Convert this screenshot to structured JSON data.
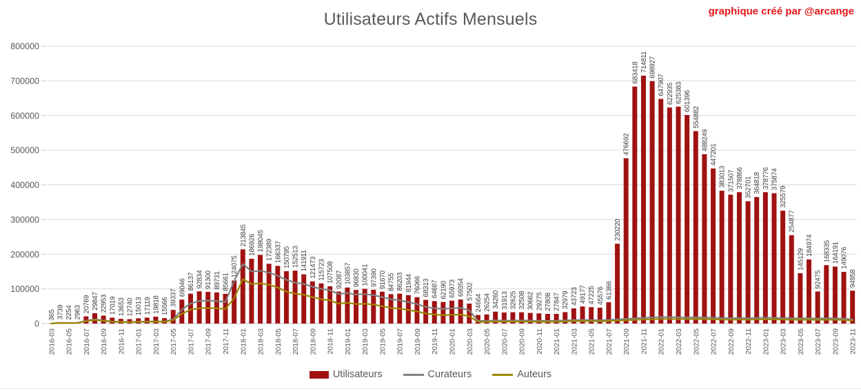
{
  "header": {
    "title": "Utilisateurs Actifs Mensuels",
    "credit": "graphique créé par  @arcange"
  },
  "legend": {
    "utilisateurs": "Utilisateurs",
    "curateurs": "Curateurs",
    "auteurs": "Auteurs"
  },
  "colors": {
    "bar": "#A01212",
    "curateurs_line": "#808080",
    "auteurs_line": "#9B8700",
    "gridline": "#D9D9D9",
    "axis_line": "#BFBFBF",
    "value_label": "#3f3f3f",
    "axis_text": "#595959",
    "title_text": "#595959",
    "credit_text": "#E31515"
  },
  "chart_data": {
    "type": "bar",
    "title": "Utilisateurs Actifs Mensuels",
    "xlabel": "",
    "ylabel": "",
    "ylim": [
      0,
      800000
    ],
    "y_ticks": [
      0,
      100000,
      200000,
      300000,
      400000,
      500000,
      600000,
      700000,
      800000
    ],
    "x_tick_step": 2,
    "grid": true,
    "legend_position": "bottom",
    "x": [
      "2016-03",
      "2016-04",
      "2016-05",
      "2016-06",
      "2016-07",
      "2016-08",
      "2016-09",
      "2016-10",
      "2016-11",
      "2016-12",
      "2017-01",
      "2017-02",
      "2017-03",
      "2017-04",
      "2017-05",
      "2017-06",
      "2017-07",
      "2017-08",
      "2017-09",
      "2017-10",
      "2017-11",
      "2017-12",
      "2018-01",
      "2018-02",
      "2018-03",
      "2018-04",
      "2018-05",
      "2018-06",
      "2018-07",
      "2018-08",
      "2018-09",
      "2018-10",
      "2018-11",
      "2018-12",
      "2019-01",
      "2019-02",
      "2019-03",
      "2019-04",
      "2019-05",
      "2019-06",
      "2019-07",
      "2019-08",
      "2019-09",
      "2019-10",
      "2019-11",
      "2019-12",
      "2020-01",
      "2020-02",
      "2020-03",
      "2020-04",
      "2020-05",
      "2020-06",
      "2020-07",
      "2020-08",
      "2020-09",
      "2020-10",
      "2020-11",
      "2020-12",
      "2021-01",
      "2021-02",
      "2021-03",
      "2021-04",
      "2021-05",
      "2021-06",
      "2021-07",
      "2021-08",
      "2021-09",
      "2021-10",
      "2021-11",
      "2021-12",
      "2022-01",
      "2022-02",
      "2022-03",
      "2022-04",
      "2022-05",
      "2022-06",
      "2022-07",
      "2022-08",
      "2022-09",
      "2022-10",
      "2022-11",
      "2022-12",
      "2023-01",
      "2023-02",
      "2023-03",
      "2023-04",
      "2023-05",
      "2023-06",
      "2023-07",
      "2023-08",
      "2023-09",
      "2023-10",
      "2023-11"
    ],
    "series": [
      {
        "name": "Utilisateurs",
        "render": "bar",
        "color": "#A01212",
        "data_labels": true,
        "values": [
          365,
          3739,
          2254,
          2963,
          20769,
          29847,
          22953,
          17019,
          13653,
          12740,
          15013,
          17119,
          19818,
          15566,
          39337,
          69046,
          86137,
          92834,
          91300,
          89731,
          85661,
          124075,
          213845,
          186926,
          198045,
          172389,
          166337,
          150795,
          152513,
          141911,
          121473,
          115723,
          107508,
          92087,
          103857,
          96830,
          100041,
          97390,
          91670,
          84755,
          86203,
          81944,
          76066,
          68313,
          64687,
          62190,
          65973,
          69354,
          57502,
          24664,
          26254,
          34260,
          31913,
          32625,
          32508,
          30662,
          29275,
          27808,
          27847,
          32979,
          43723,
          49177,
          47225,
          45576,
          61366,
          230220,
          476692,
          683418,
          714811,
          698927,
          647907,
          622935,
          625383,
          601396,
          554882,
          488249,
          447201,
          383013,
          371507,
          378866,
          352701,
          364818,
          378776,
          375874,
          325579,
          254877,
          145129,
          184974,
          92475,
          168335,
          164191,
          149076,
          94958
        ]
      },
      {
        "name": "Curateurs",
        "render": "line",
        "color": "#808080",
        "data_labels": false,
        "values_estimated": true,
        "values": [
          300,
          2200,
          1800,
          2000,
          8000,
          12000,
          9000,
          6000,
          5000,
          4800,
          5200,
          5800,
          6200,
          5800,
          12000,
          40000,
          58000,
          65000,
          66000,
          65000,
          62000,
          123000,
          172000,
          150000,
          152000,
          147000,
          138000,
          126000,
          118000,
          114000,
          106000,
          100000,
          96000,
          85000,
          88000,
          84000,
          85000,
          82000,
          76000,
          70000,
          67000,
          62000,
          56000,
          48000,
          44000,
          42000,
          44000,
          45000,
          38000,
          8000,
          7500,
          9000,
          8500,
          8500,
          8800,
          8500,
          8000,
          7800,
          8000,
          9000,
          10000,
          10500,
          10000,
          9800,
          10500,
          12000,
          13500,
          15000,
          16500,
          17500,
          19000,
          18500,
          18000,
          17500,
          17800,
          17500,
          17000,
          16000,
          15500,
          16000,
          15500,
          16500,
          17000,
          16500,
          16000,
          15500,
          15000,
          15500,
          14500,
          15500,
          15000,
          14000,
          12000
        ]
      },
      {
        "name": "Auteurs",
        "render": "line",
        "color": "#9B8700",
        "data_labels": false,
        "values_estimated": true,
        "values": [
          200,
          1800,
          1500,
          1700,
          7000,
          10000,
          7800,
          5200,
          4400,
          4200,
          4600,
          5000,
          5400,
          5000,
          9500,
          28000,
          40000,
          44000,
          44500,
          44000,
          42000,
          73000,
          128000,
          114000,
          116000,
          112000,
          104000,
          92000,
          86000,
          83000,
          76000,
          70000,
          67000,
          57000,
          60000,
          56000,
          57000,
          55000,
          50000,
          45000,
          43000,
          39000,
          35000,
          29000,
          26000,
          24000,
          25000,
          26000,
          21000,
          5000,
          4800,
          6000,
          5600,
          5600,
          5800,
          5500,
          5200,
          5000,
          5200,
          6000,
          6800,
          7000,
          6800,
          6600,
          7200,
          8500,
          9500,
          10500,
          11500,
          12000,
          13500,
          13000,
          12800,
          12500,
          12800,
          12500,
          12000,
          11500,
          11000,
          11500,
          11000,
          11800,
          12000,
          11800,
          11500,
          11000,
          10800,
          11000,
          10500,
          11000,
          10800,
          10200,
          8500
        ]
      }
    ]
  }
}
